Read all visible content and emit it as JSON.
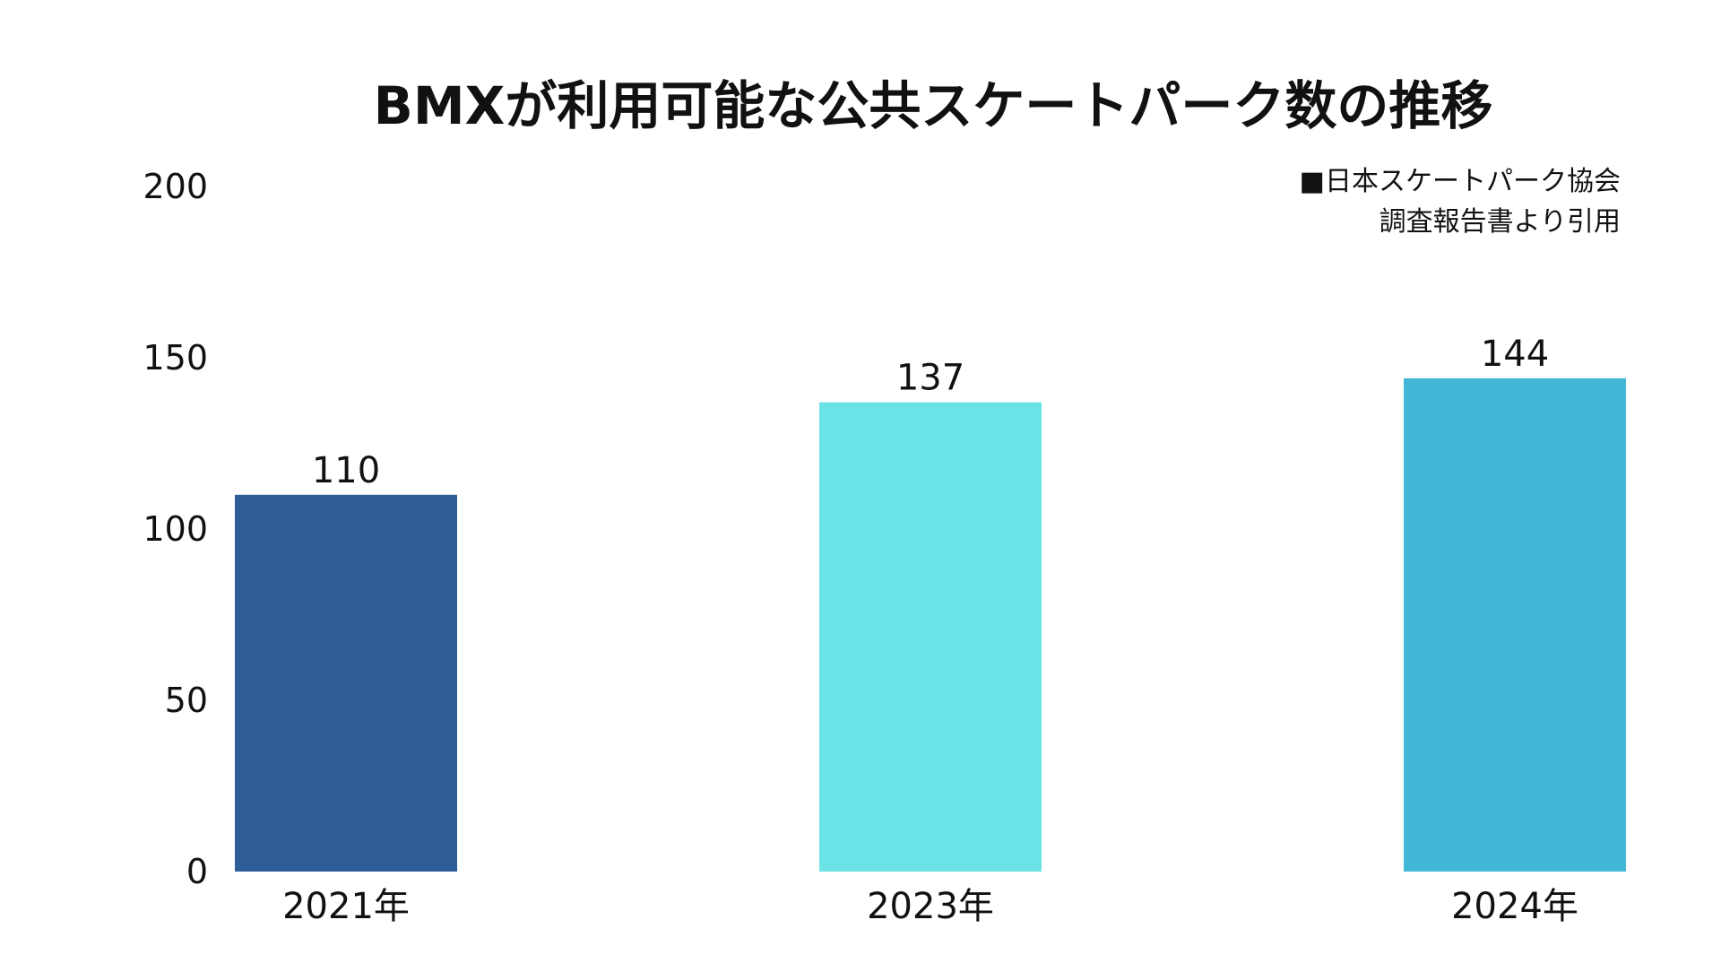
{
  "chart_data": {
    "type": "bar",
    "title": "BMXが利用可能な公共スケートパーク数の推移",
    "categories": [
      "2021年",
      "2023年",
      "2024年"
    ],
    "values": [
      110,
      137,
      144
    ],
    "value_labels": [
      "110",
      "137",
      "144"
    ],
    "bar_colors": [
      "#2F5D98",
      "#6BE3E6",
      "#43B8D6"
    ],
    "ylim": [
      0,
      200
    ],
    "yticks": [
      0,
      50,
      100,
      150,
      200
    ],
    "ytick_labels": [
      "0",
      "50",
      "100",
      "150",
      "200"
    ],
    "grid": false,
    "xlabel": "",
    "ylabel": "",
    "source_note": [
      "■日本スケートパーク協会",
      "調査報告書より引用"
    ]
  }
}
